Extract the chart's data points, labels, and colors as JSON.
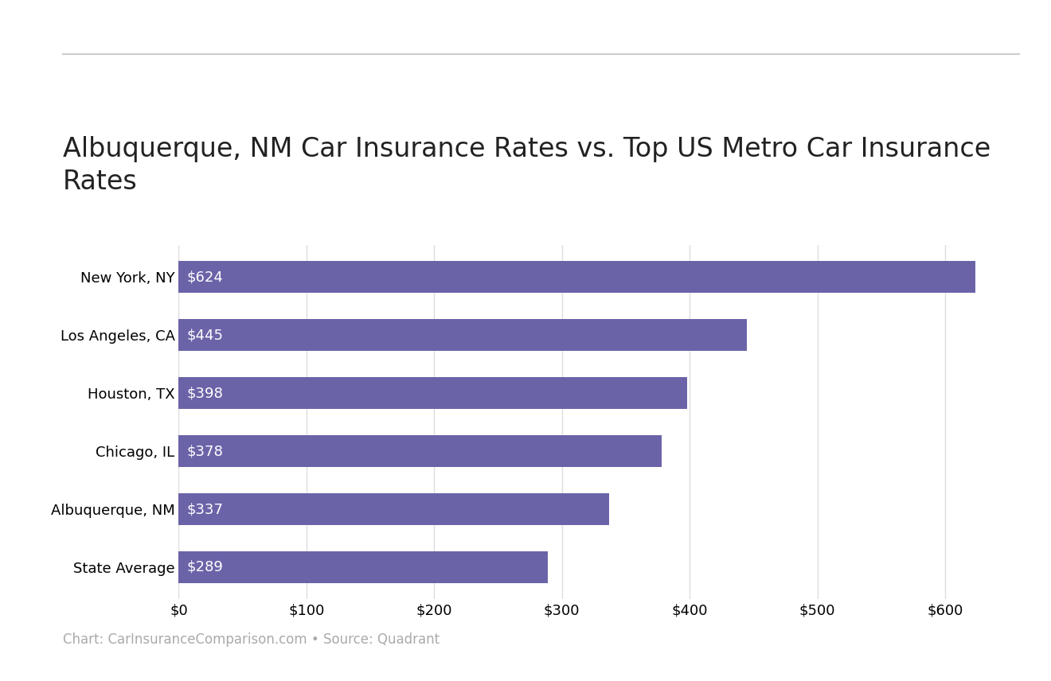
{
  "title": "Albuquerque, NM Car Insurance Rates vs. Top US Metro Car Insurance\nRates",
  "categories": [
    "State Average",
    "Albuquerque, NM",
    "Chicago, IL",
    "Houston, TX",
    "Los Angeles, CA",
    "New York, NY"
  ],
  "values": [
    289,
    337,
    378,
    398,
    445,
    624
  ],
  "bar_color": "#6b63a8",
  "label_color": "#ffffff",
  "label_fontsize": 13,
  "title_fontsize": 24,
  "bar_height": 0.55,
  "xlim": [
    0,
    650
  ],
  "xtick_values": [
    0,
    100,
    200,
    300,
    400,
    500,
    600
  ],
  "xtick_labels": [
    "$0",
    "$100",
    "$200",
    "$300",
    "$400",
    "$500",
    "$600"
  ],
  "footnote": "Chart: CarInsuranceComparison.com • Source: Quadrant",
  "footnote_fontsize": 12,
  "background_color": "#ffffff",
  "grid_color": "#dddddd",
  "top_line_color": "#cccccc",
  "tick_fontsize": 13,
  "ytick_fontsize": 13
}
